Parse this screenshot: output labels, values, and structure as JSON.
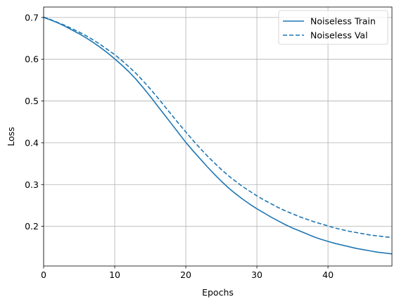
{
  "chart_data": {
    "type": "line",
    "title": "",
    "xlabel": "Epochs",
    "ylabel": "Loss",
    "xlim": [
      0,
      49
    ],
    "ylim": [
      0.105,
      0.725
    ],
    "xticks": [
      0,
      10,
      20,
      30,
      40
    ],
    "yticks": [
      0.2,
      0.3,
      0.4,
      0.5,
      0.6,
      0.7
    ],
    "xtick_labels": [
      "0",
      "10",
      "20",
      "30",
      "40"
    ],
    "ytick_labels": [
      "0.2",
      "0.3",
      "0.4",
      "0.5",
      "0.6",
      "0.7"
    ],
    "grid": true,
    "legend_position": "top-right",
    "series": [
      {
        "name": "Noiseless Train",
        "style": "solid",
        "color": "#1f77b4",
        "x": [
          0,
          1,
          2,
          3,
          4,
          5,
          6,
          7,
          8,
          9,
          10,
          11,
          12,
          13,
          14,
          15,
          16,
          17,
          18,
          19,
          20,
          21,
          22,
          23,
          24,
          25,
          26,
          27,
          28,
          29,
          30,
          31,
          32,
          33,
          34,
          35,
          36,
          37,
          38,
          39,
          40,
          41,
          42,
          43,
          44,
          45,
          46,
          47,
          48,
          49
        ],
        "y": [
          0.7,
          0.694,
          0.687,
          0.679,
          0.67,
          0.661,
          0.651,
          0.64,
          0.628,
          0.615,
          0.601,
          0.586,
          0.57,
          0.552,
          0.532,
          0.511,
          0.489,
          0.467,
          0.445,
          0.423,
          0.401,
          0.381,
          0.362,
          0.343,
          0.325,
          0.308,
          0.292,
          0.278,
          0.265,
          0.253,
          0.242,
          0.232,
          0.222,
          0.213,
          0.204,
          0.196,
          0.189,
          0.182,
          0.175,
          0.169,
          0.164,
          0.159,
          0.155,
          0.151,
          0.147,
          0.144,
          0.141,
          0.138,
          0.136,
          0.134
        ]
      },
      {
        "name": "Noiseless Val",
        "style": "dashed",
        "color": "#1f77b4",
        "x": [
          0,
          1,
          2,
          3,
          4,
          5,
          6,
          7,
          8,
          9,
          10,
          11,
          12,
          13,
          14,
          15,
          16,
          17,
          18,
          19,
          20,
          21,
          22,
          23,
          24,
          25,
          26,
          27,
          28,
          29,
          30,
          31,
          32,
          33,
          34,
          35,
          36,
          37,
          38,
          39,
          40,
          41,
          42,
          43,
          44,
          45,
          46,
          47,
          48,
          49
        ],
        "y": [
          0.701,
          0.695,
          0.688,
          0.681,
          0.673,
          0.665,
          0.656,
          0.646,
          0.635,
          0.623,
          0.611,
          0.597,
          0.582,
          0.566,
          0.548,
          0.529,
          0.509,
          0.488,
          0.467,
          0.446,
          0.426,
          0.406,
          0.387,
          0.369,
          0.352,
          0.336,
          0.321,
          0.308,
          0.295,
          0.284,
          0.273,
          0.263,
          0.254,
          0.245,
          0.237,
          0.23,
          0.223,
          0.217,
          0.211,
          0.206,
          0.201,
          0.196,
          0.192,
          0.188,
          0.185,
          0.182,
          0.179,
          0.177,
          0.175,
          0.173
        ]
      }
    ]
  }
}
